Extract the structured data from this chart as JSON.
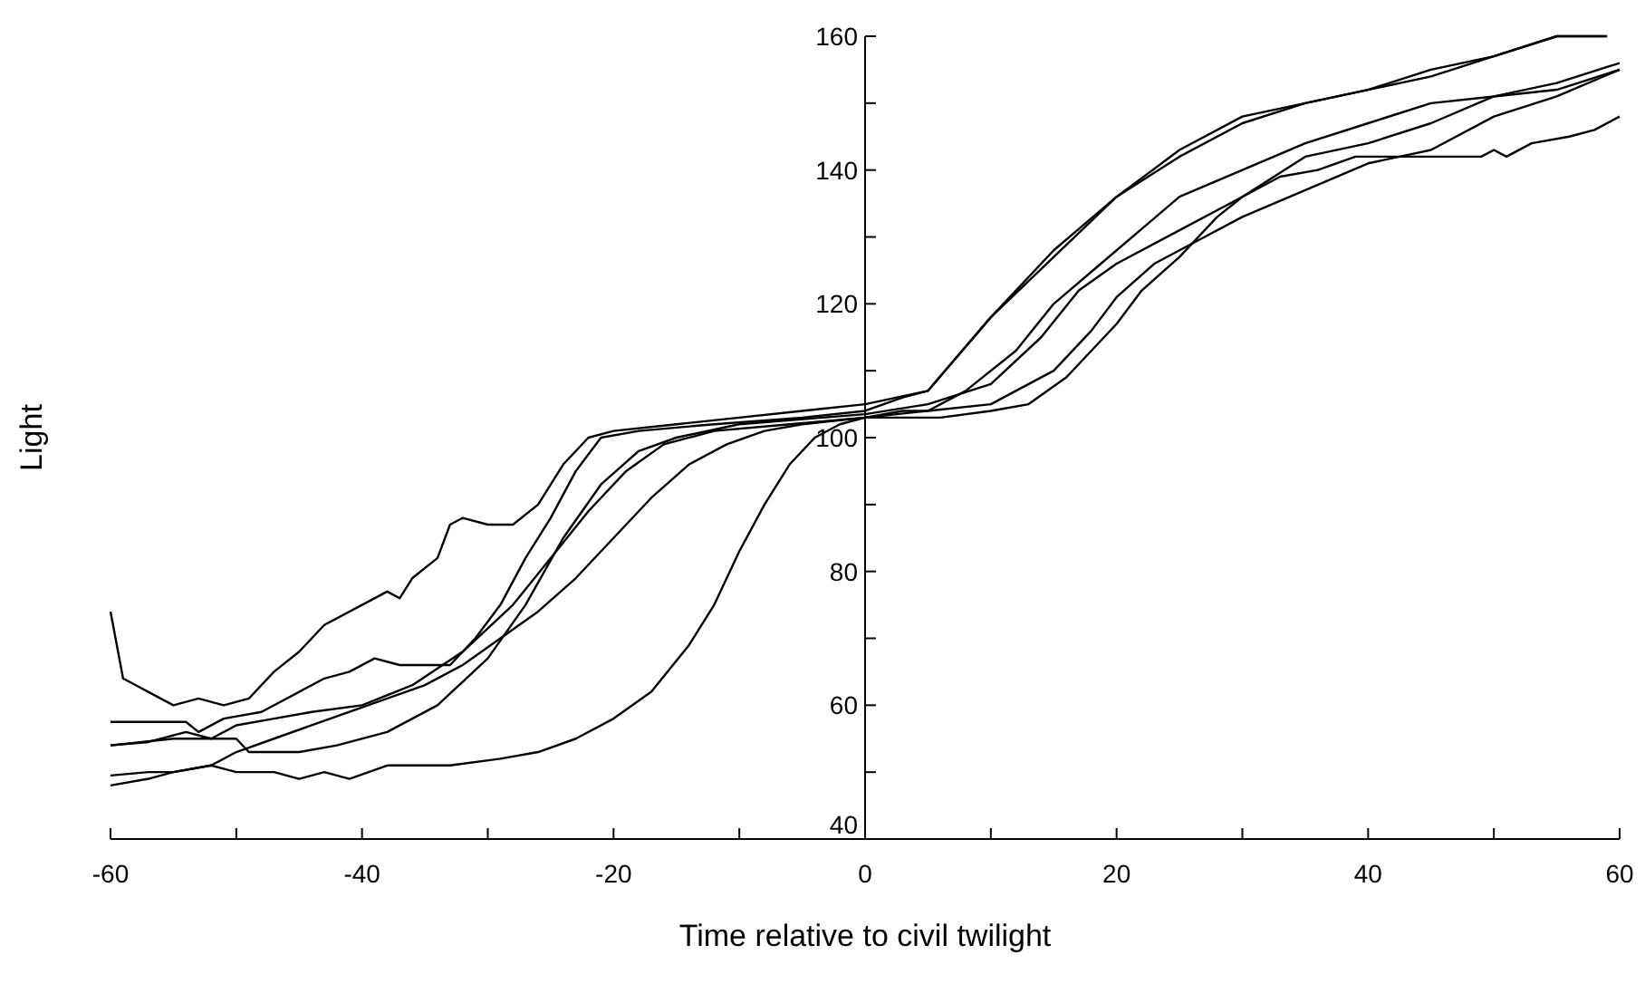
{
  "chart_data": {
    "type": "line",
    "xlabel": "Time relative to civil twilight",
    "ylabel": "Light",
    "xlim": [
      -60,
      60
    ],
    "ylim": [
      40,
      160
    ],
    "xticks": [
      -60,
      {
        "value": -50,
        "label": null
      },
      -40,
      {
        "value": -30,
        "label": null
      },
      -20,
      {
        "value": -10,
        "label": null
      },
      0,
      {
        "value": 10,
        "label": null
      },
      20,
      {
        "value": 30,
        "label": null
      },
      40,
      {
        "value": 50,
        "label": null
      },
      60
    ],
    "yticks": [
      40,
      {
        "value": 50,
        "label": null
      },
      60,
      {
        "value": 70,
        "label": null
      },
      80,
      {
        "value": 90,
        "label": null
      },
      100,
      {
        "value": 110,
        "label": null
      },
      120,
      {
        "value": 130,
        "label": null
      },
      140,
      {
        "value": 150,
        "label": null
      },
      160
    ],
    "series": [
      {
        "color": "#000000",
        "x": [
          -60,
          -59,
          -57,
          -55,
          -53,
          -51,
          -49,
          -47,
          -45,
          -43,
          -40,
          -38,
          -37,
          -36,
          -34,
          -33,
          -32,
          -30,
          -28,
          -26,
          -24,
          -22,
          -20,
          -15,
          -10,
          -5,
          0,
          5,
          10,
          15,
          20,
          25,
          30,
          35,
          40,
          45,
          50,
          55,
          59
        ],
        "values": [
          74,
          64,
          62,
          60,
          61,
          60,
          61,
          65,
          68,
          72,
          75,
          77,
          76,
          79,
          82,
          87,
          88,
          87,
          87,
          90,
          96,
          100,
          101,
          102,
          103,
          104,
          105,
          107,
          118,
          128,
          136,
          143,
          148,
          150,
          152,
          155,
          157,
          160,
          160
        ]
      },
      {
        "color": "#000000",
        "x": [
          -60,
          -57,
          -54,
          -53,
          -51,
          -48,
          -45,
          -43,
          -41,
          -39,
          -37,
          -33,
          -31,
          -29,
          -27,
          -25,
          -23,
          -21,
          -18,
          -12,
          -5,
          0,
          3,
          5,
          10,
          15,
          20,
          25,
          30,
          35,
          40,
          45,
          50,
          55,
          59
        ],
        "values": [
          57.5,
          57.5,
          57.5,
          56,
          58,
          59,
          62,
          64,
          65,
          67,
          66,
          66,
          70,
          75,
          82,
          88,
          95,
          100,
          101,
          102,
          103,
          104,
          106,
          107,
          118,
          127,
          136,
          142,
          147,
          150,
          152,
          154,
          157,
          160,
          160
        ]
      },
      {
        "color": "#000000",
        "x": [
          -60,
          -57,
          -54,
          -52,
          -50,
          -47,
          -44,
          -40,
          -36,
          -32,
          -28,
          -25,
          -22,
          -19,
          -16,
          -12,
          -6,
          0,
          3,
          5,
          8,
          12,
          15,
          20,
          25,
          30,
          35,
          40,
          45,
          50,
          55,
          60
        ],
        "values": [
          54,
          54.5,
          56,
          55,
          57,
          58,
          59,
          60,
          63,
          68,
          75,
          82,
          89,
          95,
          99,
          101,
          102,
          103,
          104,
          104,
          107,
          113,
          120,
          128,
          136,
          140,
          144,
          147,
          150,
          151,
          153,
          156
        ]
      },
      {
        "color": "#000000",
        "x": [
          -60,
          -55,
          -52,
          -50,
          -49,
          -45,
          -42,
          -38,
          -34,
          -30,
          -27,
          -24,
          -21,
          -18,
          -15,
          -10,
          0,
          5,
          10,
          14,
          17,
          20,
          25,
          30,
          35,
          40,
          45,
          50,
          55,
          60
        ],
        "values": [
          54,
          55,
          55,
          55,
          53,
          53,
          54,
          56,
          60,
          67,
          75,
          85,
          93,
          98,
          100,
          102,
          103.5,
          105,
          108,
          115,
          122,
          126,
          131,
          136,
          142,
          144,
          147,
          151,
          152,
          155
        ]
      },
      {
        "color": "#000000",
        "x": [
          -60,
          -57,
          -55,
          -52,
          -50,
          -47,
          -44,
          -41,
          -38,
          -35,
          -32,
          -29,
          -26,
          -23,
          -20,
          -17,
          -14,
          -11,
          -8,
          -5,
          0,
          5,
          10,
          15,
          18,
          20,
          23,
          27,
          30,
          35,
          40,
          45,
          50,
          55,
          60
        ],
        "values": [
          48,
          49,
          50,
          51,
          53,
          55,
          57,
          59,
          61,
          63,
          66,
          70,
          74,
          79,
          85,
          91,
          96,
          99,
          101,
          102,
          103,
          104,
          105,
          110,
          116,
          121,
          126,
          130,
          133,
          137,
          141,
          143,
          148,
          151,
          155
        ]
      },
      {
        "color": "#000000",
        "x": [
          -60,
          -57,
          -55,
          -52,
          -50,
          -47,
          -45,
          -43,
          -41,
          -38,
          -33,
          -29,
          -26,
          -23,
          -20,
          -17,
          -14,
          -12,
          -10,
          -8,
          -6,
          -4,
          -2,
          0,
          6,
          10,
          13,
          16,
          18,
          20,
          22,
          25,
          28,
          30,
          33,
          36,
          39,
          49,
          50,
          51,
          53,
          56,
          58,
          60
        ],
        "values": [
          49.5,
          50,
          50,
          51,
          50,
          50,
          49,
          50,
          49,
          51,
          51,
          52,
          53,
          55,
          58,
          62,
          69,
          75,
          83,
          90,
          96,
          100,
          102,
          103,
          103,
          104,
          105,
          109,
          113,
          117,
          122,
          127,
          133,
          136,
          139,
          140,
          142,
          142,
          143,
          142,
          144,
          145,
          146,
          148
        ]
      }
    ]
  }
}
